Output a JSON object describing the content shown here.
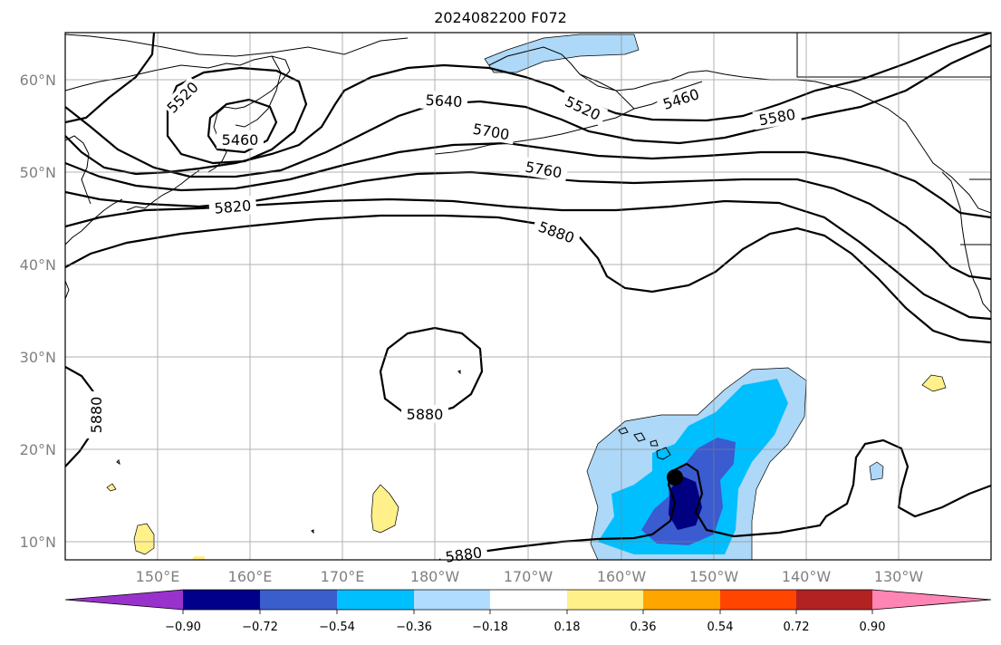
{
  "title": "2024082200 F072",
  "map": {
    "latitude_labels": [
      "60°N",
      "50°N",
      "40°N",
      "30°N",
      "20°N",
      "10°N"
    ],
    "longitude_labels": [
      "150°E",
      "160°E",
      "170°E",
      "180°W",
      "170°W",
      "160°W",
      "150°W",
      "140°W",
      "130°W"
    ],
    "contour_labels": [
      "5520",
      "5460",
      "5640",
      "5520",
      "5460",
      "5580",
      "5700",
      "5760",
      "5820",
      "5880",
      "5880",
      "5880",
      "5880"
    ],
    "storm_marker": "black-dot",
    "shading_colors": {
      "neg_090": "#000080",
      "neg_072": "#3b5bd0",
      "neg_054": "#00bfff",
      "neg_036": "#add8f7",
      "pos_018": "#fff08a"
    }
  },
  "colorbar": {
    "tick_labels": [
      "−0.90",
      "−0.72",
      "−0.54",
      "−0.36",
      "−0.18",
      "0.18",
      "0.36",
      "0.54",
      "0.72",
      "0.90"
    ],
    "colors": [
      "#9932cc",
      "#00008b",
      "#3a5fcd",
      "#00bfff",
      "#b0dcff",
      "#ffffff",
      "#fff08a",
      "#ffa500",
      "#ff4500",
      "#b22222",
      "#ff85b4"
    ]
  }
}
